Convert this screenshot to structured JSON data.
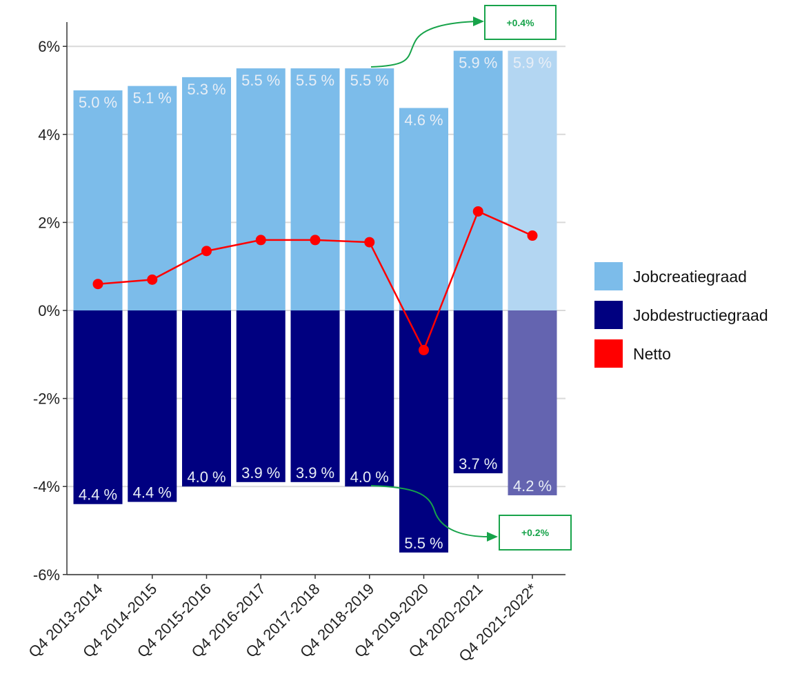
{
  "chart_data": {
    "type": "bar",
    "categories": [
      "Q4 2013-2014",
      "Q4 2014-2015",
      "Q4 2015-2016",
      "Q4 2016-2017",
      "Q4 2017-2018",
      "Q4 2018-2019",
      "Q4 2019-2020",
      "Q4 2020-2021",
      "Q4 2021-2022*"
    ],
    "series": [
      {
        "name": "Jobcreatiegraad",
        "type": "bar",
        "values": [
          5.0,
          5.1,
          5.3,
          5.5,
          5.5,
          5.5,
          4.6,
          5.9,
          5.9
        ],
        "labels": [
          "5.0 %",
          "5.1 %",
          "5.3 %",
          "5.5 %",
          "5.5 %",
          "5.5 %",
          "4.6 %",
          "5.9 %",
          "5.9 %"
        ],
        "color": "#7cbcea",
        "last_color": "#b3d6f2"
      },
      {
        "name": "Jobdestructiegraad",
        "type": "bar",
        "values": [
          -4.4,
          -4.35,
          -4.0,
          -3.9,
          -3.9,
          -4.0,
          -5.5,
          -3.7,
          -4.2
        ],
        "labels": [
          "4.4 %",
          "4.4 %",
          "4.0 %",
          "3.9 %",
          "3.9 %",
          "4.0 %",
          "5.5 %",
          "3.7 %",
          "4.2 %"
        ],
        "color": "#000080",
        "last_color": "#6464b0"
      },
      {
        "name": "Netto",
        "type": "line",
        "values": [
          0.6,
          0.7,
          1.35,
          1.6,
          1.6,
          1.55,
          -0.9,
          2.25,
          1.7
        ],
        "color": "#ff0000"
      }
    ],
    "ylim": [
      -6,
      6.5
    ],
    "yticks": [
      6,
      4,
      2,
      0,
      -2,
      -4,
      -6
    ],
    "ytick_labels": [
      "6%",
      "4%",
      "2%",
      "0%",
      "-2%",
      "-4%",
      "-6%"
    ],
    "grid": true,
    "legend_position": "right",
    "annotations": [
      {
        "text": "+0.4%",
        "from_category_index": 5,
        "from_value": 5.5
      },
      {
        "text": "+0.2%",
        "from_category_index": 5,
        "from_value": -4.0
      }
    ],
    "annotation_color": "#17a34a"
  }
}
